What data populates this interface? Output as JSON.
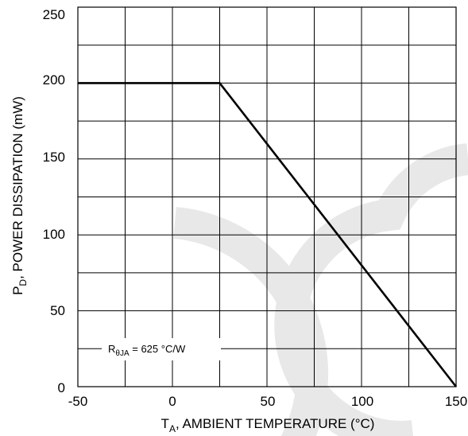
{
  "chart_data": {
    "type": "line",
    "title": "",
    "xlabel_main": "T",
    "xlabel_sub": "A",
    "xlabel_rest": ", AMBIENT TEMPERATURE (°C)",
    "ylabel_main": "P",
    "ylabel_sub": "D",
    "ylabel_rest": ", POWER DISSIPATION (mW)",
    "xlim": [
      -50,
      150
    ],
    "ylim": [
      0,
      250
    ],
    "x_ticks": [
      "-50",
      "0",
      "50",
      "100",
      "150"
    ],
    "y_ticks": [
      "0",
      "50",
      "100",
      "150",
      "200",
      "250"
    ],
    "grid": true,
    "series": [
      {
        "x": [
          -50,
          25,
          150
        ],
        "y": [
          200,
          200,
          0
        ]
      }
    ],
    "annotation": {
      "main": "R",
      "sub": "θJA",
      "rest": " = 625 °C/W"
    },
    "watermark_color": "#e6e6e6",
    "line_color": "#000000"
  }
}
